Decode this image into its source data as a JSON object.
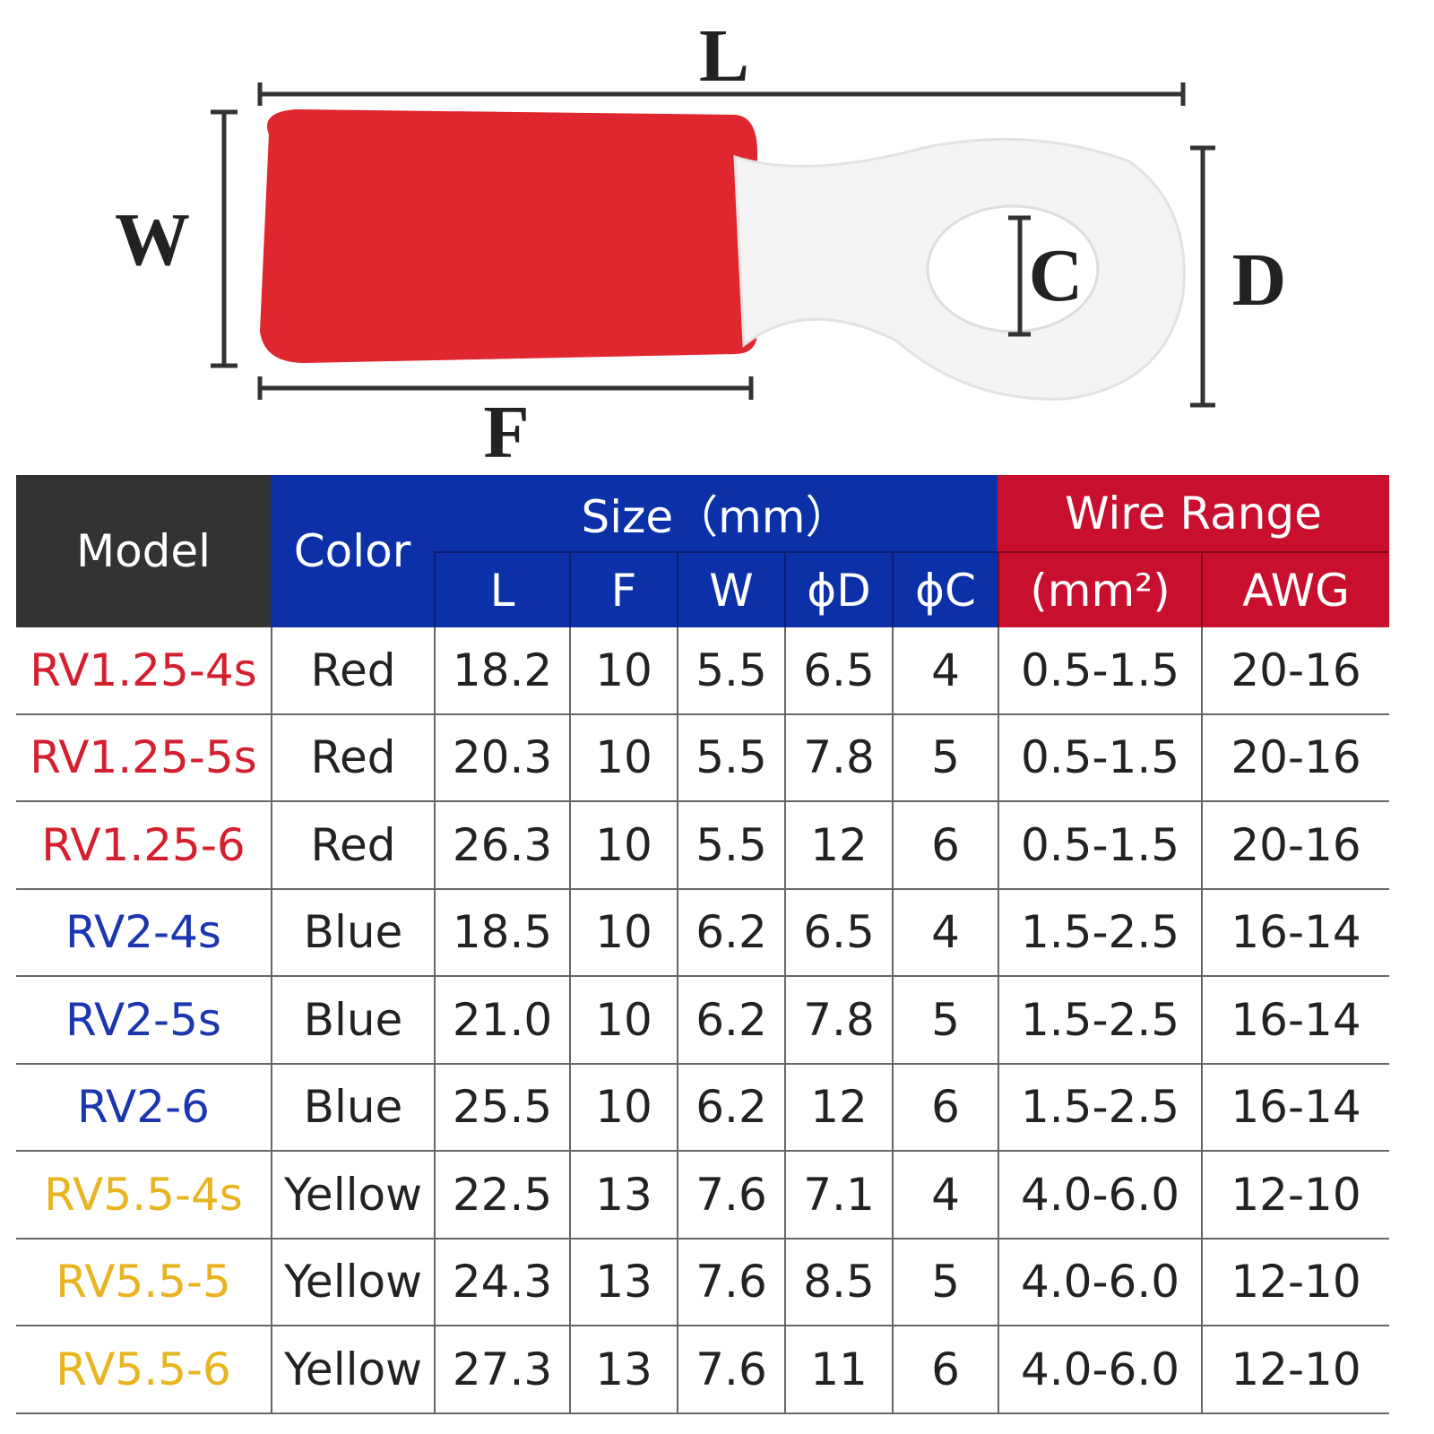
{
  "diagram": {
    "labels": {
      "length": "L",
      "width": "W",
      "barrel": "F",
      "hole": "C",
      "ring": "D"
    }
  },
  "table": {
    "header": {
      "model": "Model",
      "color": "Color",
      "size": "Size（mm）",
      "wire_range": "Wire Range",
      "sub": [
        "L",
        "F",
        "W",
        "ϕD",
        "ϕC",
        "(mm²)",
        "AWG"
      ]
    },
    "model_colors": [
      "#d4202e",
      "#d4202e",
      "#d4202e",
      "#1b37b0",
      "#1b37b0",
      "#1b37b0",
      "#e8b420",
      "#e8b420",
      "#e8b420"
    ],
    "rows": [
      [
        "RV1.25-4s",
        "Red",
        "18.2",
        "10",
        "5.5",
        "6.5",
        "4",
        "0.5-1.5",
        "20-16"
      ],
      [
        "RV1.25-5s",
        "Red",
        "20.3",
        "10",
        "5.5",
        "7.8",
        "5",
        "0.5-1.5",
        "20-16"
      ],
      [
        "RV1.25-6",
        "Red",
        "26.3",
        "10",
        "5.5",
        "12",
        "6",
        "0.5-1.5",
        "20-16"
      ],
      [
        "RV2-4s",
        "Blue",
        "18.5",
        "10",
        "6.2",
        "6.5",
        "4",
        "1.5-2.5",
        "16-14"
      ],
      [
        "RV2-5s",
        "Blue",
        "21.0",
        "10",
        "6.2",
        "7.8",
        "5",
        "1.5-2.5",
        "16-14"
      ],
      [
        "RV2-6",
        "Blue",
        "25.5",
        "10",
        "6.2",
        "12",
        "6",
        "1.5-2.5",
        "16-14"
      ],
      [
        "RV5.5-4s",
        "Yellow",
        "22.5",
        "13",
        "7.6",
        "7.1",
        "4",
        "4.0-6.0",
        "12-10"
      ],
      [
        "RV5.5-5",
        "Yellow",
        "24.3",
        "13",
        "7.6",
        "8.5",
        "5",
        "4.0-6.0",
        "12-10"
      ],
      [
        "RV5.5-6",
        "Yellow",
        "27.3",
        "13",
        "7.6",
        "11",
        "6",
        "4.0-6.0",
        "12-10"
      ]
    ]
  }
}
